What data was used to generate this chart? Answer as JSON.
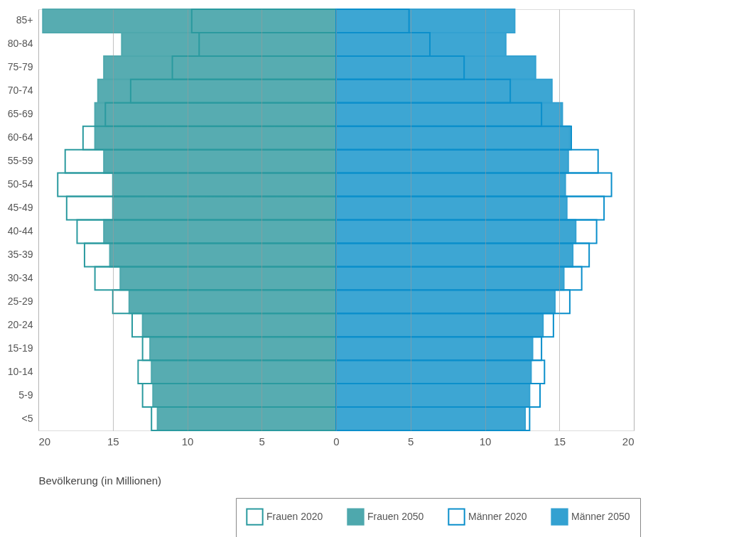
{
  "chart_data": {
    "type": "bar",
    "orientation": "horizontal",
    "categories": [
      "85+",
      "80-84",
      "75-79",
      "70-74",
      "65-69",
      "60-64",
      "55-59",
      "50-54",
      "45-49",
      "40-44",
      "35-39",
      "30-34",
      "25-29",
      "20-24",
      "15-19",
      "10-14",
      "5-9",
      "<5"
    ],
    "series": [
      {
        "name": "Frauen 2020",
        "color": "#2a9a9f",
        "line_style": "solid",
        "values": [
          -9.7,
          -9.2,
          -11.0,
          -13.8,
          -15.5,
          -17.0,
          -18.2,
          -18.7,
          -18.1,
          -17.4,
          -16.9,
          -16.2,
          -15.0,
          -13.7,
          -13.0,
          -13.3,
          -13.0,
          -12.4
        ]
      },
      {
        "name": "Frauen 2050",
        "color": "#4ea8ad",
        "values": [
          -19.7,
          -14.4,
          -15.6,
          -16.0,
          -16.2,
          -16.2,
          -15.6,
          -15.0,
          -15.0,
          -15.6,
          -15.2,
          -14.5,
          -13.9,
          -13.0,
          -12.5,
          -12.4,
          -12.3,
          -12.0
        ]
      },
      {
        "name": "Männer 2020",
        "color": "#0b8fcb",
        "line_style": "solid",
        "values": [
          4.9,
          6.3,
          8.6,
          11.7,
          13.8,
          15.8,
          17.6,
          18.5,
          18.0,
          17.5,
          17.0,
          16.5,
          15.7,
          14.6,
          13.8,
          14.0,
          13.7,
          13.0
        ]
      },
      {
        "name": "Männer 2050",
        "color": "#33a1d1",
        "values": [
          12.0,
          11.4,
          13.4,
          14.5,
          15.2,
          15.7,
          15.6,
          15.4,
          15.5,
          16.1,
          15.9,
          15.3,
          14.7,
          13.9,
          13.2,
          13.1,
          13.0,
          12.7
        ]
      }
    ],
    "xlim": [
      -20,
      20
    ],
    "xticks": [
      {
        "value": -20,
        "label": "20"
      },
      {
        "value": -15,
        "label": "15"
      },
      {
        "value": -10,
        "label": "10"
      },
      {
        "value": -5,
        "label": "5"
      },
      0,
      5,
      10,
      15,
      20
    ],
    "xlabel": "Bevölkerung (in Millionen)",
    "grid": "x",
    "legend": "bottom right"
  }
}
